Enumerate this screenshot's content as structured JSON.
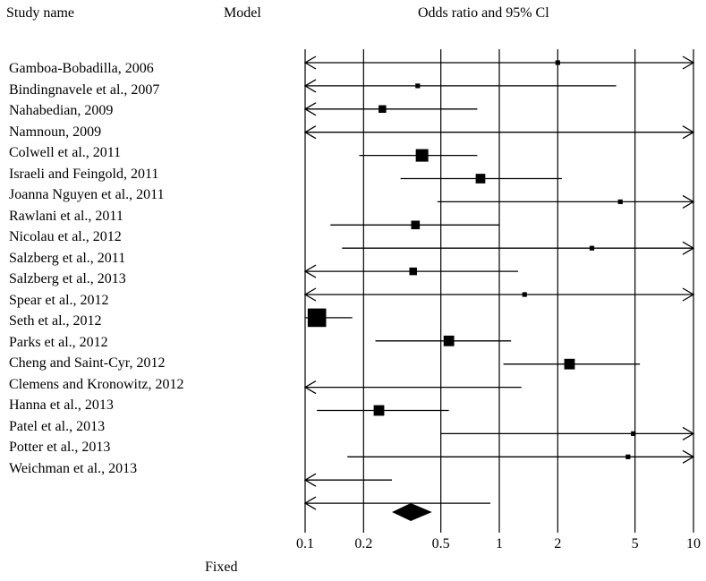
{
  "headers": {
    "study": "Study name",
    "model": "Model",
    "effect": "Odds ratio and 95% Cl"
  },
  "model_label": "Fixed",
  "chart_data": {
    "type": "forest",
    "scale": "log",
    "xlim": [
      0.1,
      10
    ],
    "ticks": [
      {
        "value": 0.1,
        "label": "0.1"
      },
      {
        "value": 0.2,
        "label": "0.2"
      },
      {
        "value": 0.5,
        "label": "0.5"
      },
      {
        "value": 1,
        "label": "1"
      },
      {
        "value": 2,
        "label": "2"
      },
      {
        "value": 5,
        "label": "5"
      },
      {
        "value": 10,
        "label": "10"
      }
    ],
    "rows": [
      {
        "study": "Gamboa-Bobadilla, 2006",
        "or": 2.0,
        "lower": 0.1,
        "upper": 10,
        "weight": 1,
        "left_arrow": true,
        "right_arrow": true
      },
      {
        "study": "Bindingnavele et al., 2007",
        "or": 0.38,
        "lower": 0.1,
        "upper": 4.0,
        "weight": 1,
        "left_arrow": true,
        "right_arrow": false
      },
      {
        "study": "Nahabedian, 2009",
        "or": 0.25,
        "lower": 0.1,
        "upper": 0.77,
        "weight": 2.5,
        "left_arrow": true,
        "right_arrow": false
      },
      {
        "study": "Namnoun, 2009",
        "or": null,
        "lower": 0.1,
        "upper": 10,
        "weight": 0,
        "left_arrow": true,
        "right_arrow": true
      },
      {
        "study": "Colwell et al., 2011",
        "or": 0.4,
        "lower": 0.19,
        "upper": 0.77,
        "weight": 5,
        "left_arrow": false,
        "right_arrow": false
      },
      {
        "study": "Israeli and Feingold, 2011",
        "or": 0.8,
        "lower": 0.31,
        "upper": 2.1,
        "weight": 3.5,
        "left_arrow": false,
        "right_arrow": false
      },
      {
        "study": "Joanna Nguyen et al., 2011",
        "or": 4.2,
        "lower": 0.48,
        "upper": 10,
        "weight": 1,
        "left_arrow": false,
        "right_arrow": true
      },
      {
        "study": "Rawlani et al., 2011",
        "or": 0.37,
        "lower": 0.135,
        "upper": 1.0,
        "weight": 3,
        "left_arrow": false,
        "right_arrow": false
      },
      {
        "study": "Nicolau et al., 2012",
        "or": 3.0,
        "lower": 0.155,
        "upper": 10,
        "weight": 1,
        "left_arrow": false,
        "right_arrow": true
      },
      {
        "study": "Salzberg et al., 2011",
        "or": 0.36,
        "lower": 0.1,
        "upper": 1.25,
        "weight": 2.5,
        "left_arrow": true,
        "right_arrow": false
      },
      {
        "study": "Salzberg et al., 2013",
        "or": 1.35,
        "lower": 0.1,
        "upper": 10,
        "weight": 1,
        "left_arrow": true,
        "right_arrow": true
      },
      {
        "study": "Spear et al., 2012",
        "or": 0.115,
        "lower": 0.1,
        "upper": 0.175,
        "weight": 8,
        "left_arrow": false,
        "right_arrow": false
      },
      {
        "study": "Seth et al., 2012",
        "or": 0.55,
        "lower": 0.23,
        "upper": 1.15,
        "weight": 4,
        "left_arrow": false,
        "right_arrow": false
      },
      {
        "study": "Parks et al., 2012",
        "or": 2.3,
        "lower": 1.05,
        "upper": 5.3,
        "weight": 4,
        "left_arrow": false,
        "right_arrow": false
      },
      {
        "study": "Cheng and Saint-Cyr, 2012",
        "or": null,
        "lower": 0.1,
        "upper": 1.3,
        "weight": 0,
        "left_arrow": true,
        "right_arrow": false
      },
      {
        "study": "Clemens and Kronowitz, 2012",
        "or": 0.24,
        "lower": 0.115,
        "upper": 0.55,
        "weight": 4,
        "left_arrow": false,
        "right_arrow": false
      },
      {
        "study": "Hanna et al., 2013",
        "or": 4.9,
        "lower": 0.5,
        "upper": 10,
        "weight": 1,
        "left_arrow": false,
        "right_arrow": true
      },
      {
        "study": "Patel et al., 2013",
        "or": 4.6,
        "lower": 0.165,
        "upper": 10,
        "weight": 1,
        "left_arrow": false,
        "right_arrow": true
      },
      {
        "study": "Potter et al., 2013",
        "or": null,
        "lower": 0.1,
        "upper": 0.28,
        "weight": 0,
        "left_arrow": true,
        "right_arrow": false
      },
      {
        "study": "Weichman et al., 2013",
        "or": null,
        "lower": 0.1,
        "upper": 0.9,
        "weight": 0,
        "left_arrow": true,
        "right_arrow": false
      }
    ],
    "summary": {
      "or": 0.35,
      "lower": 0.28,
      "upper": 0.45
    }
  }
}
